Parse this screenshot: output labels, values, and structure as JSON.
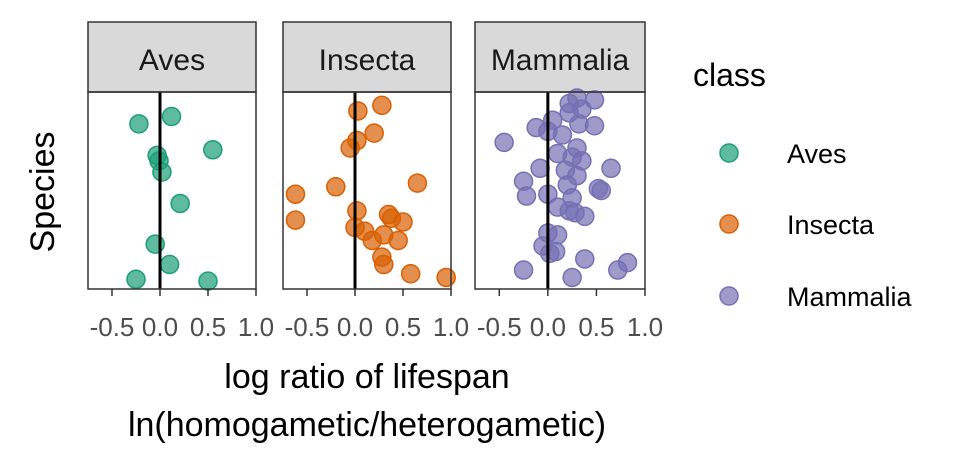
{
  "chart_data": {
    "type": "scatter",
    "xlabel_line1": "log ratio of lifespan",
    "xlabel_line2": "ln(homogametic/heterogametic)",
    "ylabel": "Species",
    "xlim": [
      -0.75,
      1.0
    ],
    "xticks": [
      -0.5,
      0.0,
      0.5,
      1.0
    ],
    "xtick_labels": [
      "-0.5",
      "0.0",
      "0.5",
      "1.0"
    ],
    "reference_line_x": 0.0,
    "grid": false,
    "legend": {
      "title": "class",
      "position": "right",
      "entries": [
        "Aves",
        "Insecta",
        "Mammalia"
      ]
    },
    "facets": [
      {
        "label": "Aves",
        "color": "#1B9E77",
        "points": [
          [
            -0.22,
            0.86
          ],
          [
            0.12,
            0.9
          ],
          [
            0.55,
            0.72
          ],
          [
            -0.03,
            0.69
          ],
          [
            -0.01,
            0.66
          ],
          [
            0.02,
            0.6
          ],
          [
            0.21,
            0.43
          ],
          [
            -0.05,
            0.21
          ],
          [
            0.1,
            0.1
          ],
          [
            -0.25,
            0.02
          ],
          [
            0.5,
            0.01
          ]
        ]
      },
      {
        "label": "Insecta",
        "color": "#D95F02",
        "points": [
          [
            0.28,
            0.96
          ],
          [
            0.03,
            0.93
          ],
          [
            0.2,
            0.81
          ],
          [
            0.02,
            0.77
          ],
          [
            -0.05,
            0.73
          ],
          [
            -0.62,
            0.48
          ],
          [
            -0.2,
            0.52
          ],
          [
            0.65,
            0.54
          ],
          [
            0.02,
            0.39
          ],
          [
            0.35,
            0.37
          ],
          [
            0.38,
            0.35
          ],
          [
            -0.62,
            0.34
          ],
          [
            0.5,
            0.33
          ],
          [
            0.0,
            0.3
          ],
          [
            0.1,
            0.28
          ],
          [
            0.3,
            0.26
          ],
          [
            0.18,
            0.23
          ],
          [
            0.45,
            0.23
          ],
          [
            0.28,
            0.14
          ],
          [
            0.3,
            0.1
          ],
          [
            0.58,
            0.05
          ],
          [
            0.95,
            0.03
          ]
        ]
      },
      {
        "label": "Mammalia",
        "color": "#7570B3",
        "points": [
          [
            0.22,
            0.97
          ],
          [
            0.3,
            1.0
          ],
          [
            0.48,
            0.99
          ],
          [
            0.35,
            0.94
          ],
          [
            0.05,
            0.88
          ],
          [
            0.22,
            0.92
          ],
          [
            0.32,
            0.86
          ],
          [
            0.48,
            0.85
          ],
          [
            -0.12,
            0.84
          ],
          [
            0.0,
            0.82
          ],
          [
            0.15,
            0.8
          ],
          [
            -0.45,
            0.76
          ],
          [
            0.3,
            0.73
          ],
          [
            0.1,
            0.7
          ],
          [
            0.25,
            0.68
          ],
          [
            0.35,
            0.66
          ],
          [
            0.65,
            0.62
          ],
          [
            -0.08,
            0.62
          ],
          [
            0.18,
            0.61
          ],
          [
            0.3,
            0.58
          ],
          [
            -0.25,
            0.55
          ],
          [
            0.2,
            0.53
          ],
          [
            0.52,
            0.51
          ],
          [
            0.55,
            0.5
          ],
          [
            0.0,
            0.48
          ],
          [
            -0.22,
            0.47
          ],
          [
            0.25,
            0.46
          ],
          [
            0.1,
            0.41
          ],
          [
            0.22,
            0.39
          ],
          [
            0.28,
            0.38
          ],
          [
            0.38,
            0.36
          ],
          [
            0.0,
            0.27
          ],
          [
            0.1,
            0.26
          ],
          [
            -0.05,
            0.2
          ],
          [
            0.08,
            0.17
          ],
          [
            0.38,
            0.13
          ],
          [
            0.02,
            0.16
          ],
          [
            0.82,
            0.11
          ],
          [
            -0.25,
            0.07
          ],
          [
            0.72,
            0.07
          ],
          [
            0.25,
            0.03
          ]
        ]
      }
    ]
  }
}
